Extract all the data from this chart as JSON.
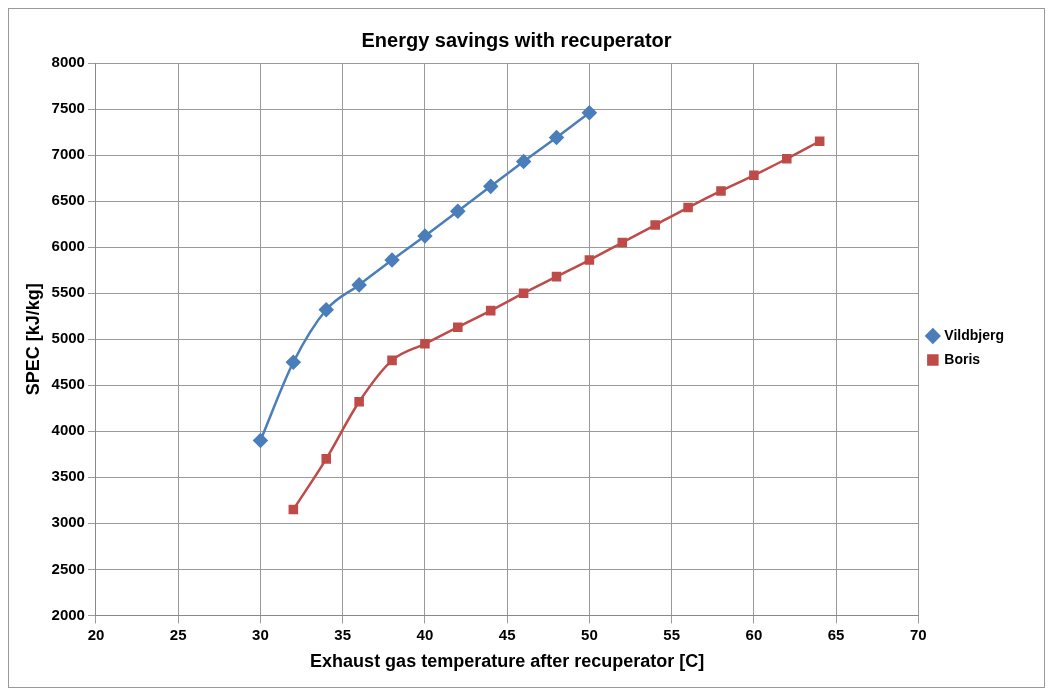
{
  "chart_data": {
    "type": "line",
    "title": "Energy savings with recuperator",
    "xlabel": "Exhaust gas temperature after recuperator [C]",
    "ylabel": "SPEC [kJ/kg]",
    "xlim": [
      20,
      70
    ],
    "xticks": [
      20,
      25,
      30,
      35,
      40,
      45,
      50,
      55,
      60,
      65,
      70
    ],
    "ylim": [
      2000,
      8000
    ],
    "yticks": [
      2000,
      2500,
      3000,
      3500,
      4000,
      4500,
      5000,
      5500,
      6000,
      6500,
      7000,
      7500,
      8000
    ],
    "grid": true,
    "legend": "right",
    "line_style": "solid",
    "series": [
      {
        "name": "Vildbjerg",
        "color": "#4a7ebb",
        "marker": "diamond",
        "x": [
          30,
          32,
          34,
          36,
          38,
          40,
          42,
          44,
          46,
          48,
          50
        ],
        "values": [
          3900,
          4750,
          5320,
          5590,
          5860,
          6120,
          6390,
          6660,
          6930,
          7190,
          7460
        ]
      },
      {
        "name": "Boris",
        "color": "#be4b48",
        "marker": "square",
        "x": [
          32,
          34,
          36,
          38,
          40,
          42,
          44,
          46,
          48,
          50,
          52,
          54,
          56,
          58,
          60,
          62,
          64
        ],
        "values": [
          3150,
          3700,
          4320,
          4770,
          4950,
          5130,
          5310,
          5500,
          5680,
          5860,
          6050,
          6240,
          6430,
          6610,
          6780,
          6960,
          7150
        ]
      }
    ]
  }
}
